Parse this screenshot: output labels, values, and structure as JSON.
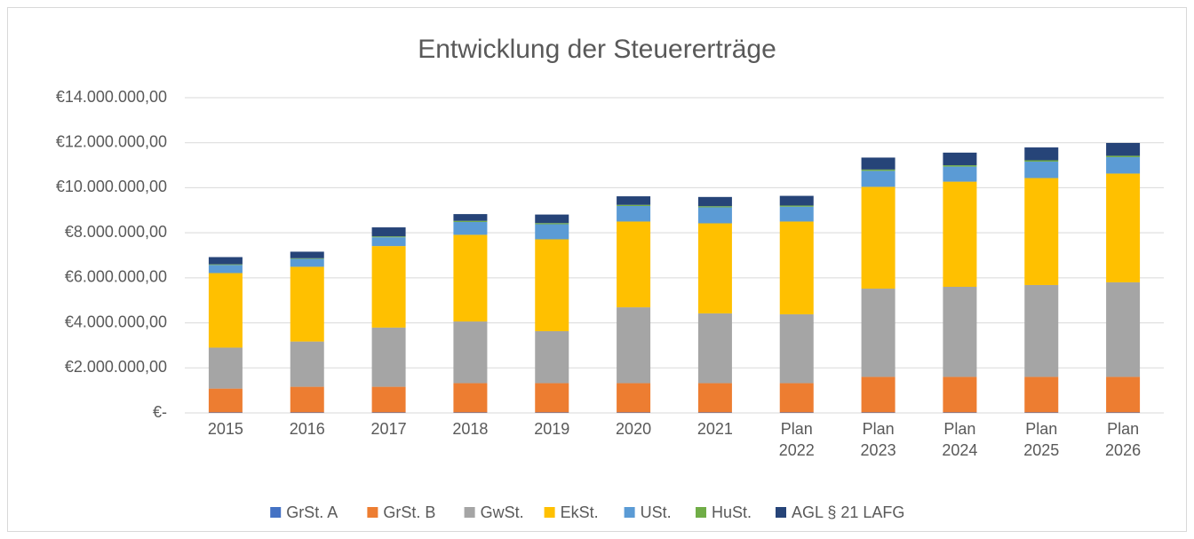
{
  "chart_data": {
    "type": "stacked_bar",
    "title": "Entwicklung der Steuererträge",
    "categories": [
      "2015",
      "2016",
      "2017",
      "2018",
      "2019",
      "2020",
      "2021",
      "Plan 2022",
      "Plan 2023",
      "Plan 2024",
      "Plan 2025",
      "Plan 2026"
    ],
    "series": [
      {
        "name": "GrSt. A",
        "color": "#4472c4",
        "values": [
          20000,
          20000,
          20000,
          20000,
          20000,
          20000,
          20000,
          20000,
          20000,
          20000,
          20000,
          20000
        ]
      },
      {
        "name": "GrSt. B",
        "color": "#ed7d31",
        "values": [
          1060000,
          1140000,
          1140000,
          1300000,
          1300000,
          1300000,
          1300000,
          1300000,
          1580000,
          1580000,
          1580000,
          1580000
        ]
      },
      {
        "name": "GwSt.",
        "color": "#a5a5a5",
        "values": [
          1820000,
          2010000,
          2630000,
          2740000,
          2310000,
          3370000,
          3100000,
          3060000,
          3920000,
          4000000,
          4080000,
          4200000
        ]
      },
      {
        "name": "EkSt.",
        "color": "#ffc000",
        "values": [
          3310000,
          3320000,
          3620000,
          3850000,
          4080000,
          3810000,
          4000000,
          4120000,
          4520000,
          4670000,
          4750000,
          4830000
        ]
      },
      {
        "name": "USt.",
        "color": "#5b9bd5",
        "values": [
          360000,
          350000,
          390000,
          570000,
          670000,
          690000,
          710000,
          660000,
          710000,
          670000,
          730000,
          730000
        ]
      },
      {
        "name": "HuSt.",
        "color": "#70ad47",
        "values": [
          30000,
          30000,
          40000,
          50000,
          50000,
          50000,
          50000,
          50000,
          60000,
          60000,
          60000,
          60000
        ]
      },
      {
        "name": "AGL § 21 LAFG",
        "color": "#264478",
        "values": [
          320000,
          290000,
          400000,
          300000,
          380000,
          380000,
          410000,
          430000,
          530000,
          560000,
          570000,
          570000
        ]
      }
    ],
    "ylim": [
      0,
      14000000
    ],
    "yticks": [
      {
        "value": 0,
        "label": "€-"
      },
      {
        "value": 2000000,
        "label": "€2.000.000,00"
      },
      {
        "value": 4000000,
        "label": "€4.000.000,00"
      },
      {
        "value": 6000000,
        "label": "€6.000.000,00"
      },
      {
        "value": 8000000,
        "label": "€8.000.000,00"
      },
      {
        "value": 10000000,
        "label": "€10.000.000,00"
      },
      {
        "value": 12000000,
        "label": "€12.000.000,00"
      },
      {
        "value": 14000000,
        "label": "€14.000.000,00"
      }
    ],
    "grid": true,
    "legend": "bottom"
  }
}
